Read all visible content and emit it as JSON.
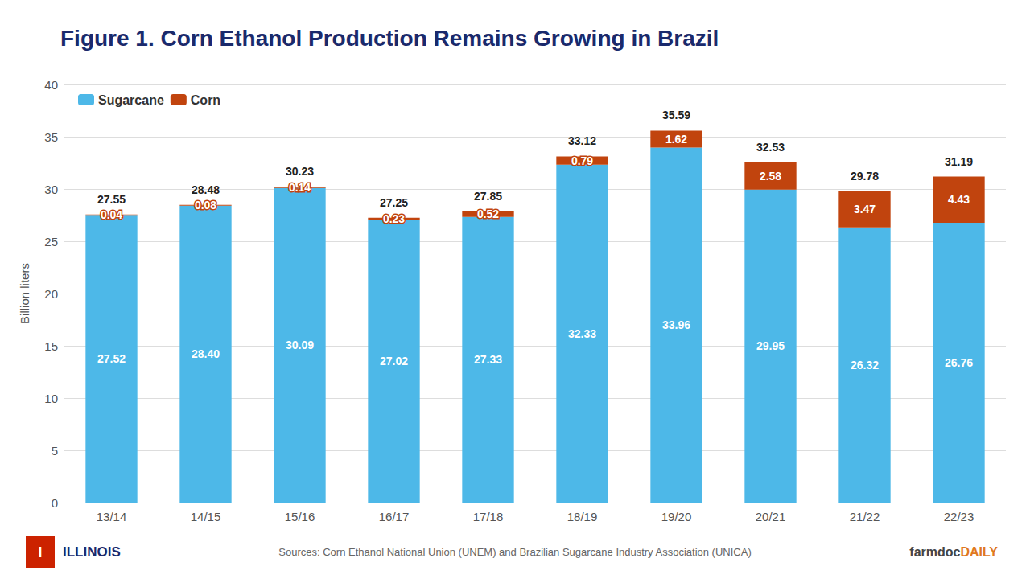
{
  "chart_data": {
    "type": "bar",
    "title": "Figure 1. Corn Ethanol Production Remains Growing in Brazil",
    "ylabel": "Billion liters",
    "categories": [
      "13/14",
      "14/15",
      "15/16",
      "16/17",
      "17/18",
      "18/19",
      "19/20",
      "20/21",
      "21/22",
      "22/23"
    ],
    "series": [
      {
        "name": "Sugarcane",
        "color": "#4db8e8",
        "values": [
          27.52,
          28.4,
          30.09,
          27.02,
          27.33,
          32.33,
          33.96,
          29.95,
          26.32,
          26.76
        ],
        "value_labels": [
          "27.52",
          "28.40",
          "30.09",
          "27.02",
          "27.33",
          "32.33",
          "33.96",
          "29.95",
          "26.32",
          "26.76"
        ]
      },
      {
        "name": "Corn",
        "color": "#c1440e",
        "values": [
          0.04,
          0.08,
          0.14,
          0.23,
          0.52,
          0.79,
          1.62,
          2.58,
          3.47,
          4.43
        ]
      }
    ],
    "totals": [
      27.55,
      28.48,
      30.23,
      27.25,
      27.85,
      33.12,
      35.59,
      32.53,
      29.78,
      31.19
    ],
    "stacked": true,
    "data_labels": true,
    "ylim": [
      0,
      40
    ],
    "yticks": [
      0,
      5,
      10,
      15,
      20,
      25,
      30,
      35,
      40
    ],
    "grid": true,
    "legend": "upper left",
    "annotations": [
      "I",
      "ILLINOIS",
      "Sources: Corn Ethanol National Union (UNEM) and Brazilian Sugarcane Industry Association (UNICA)",
      "farmdoc",
      "DAILY"
    ]
  }
}
